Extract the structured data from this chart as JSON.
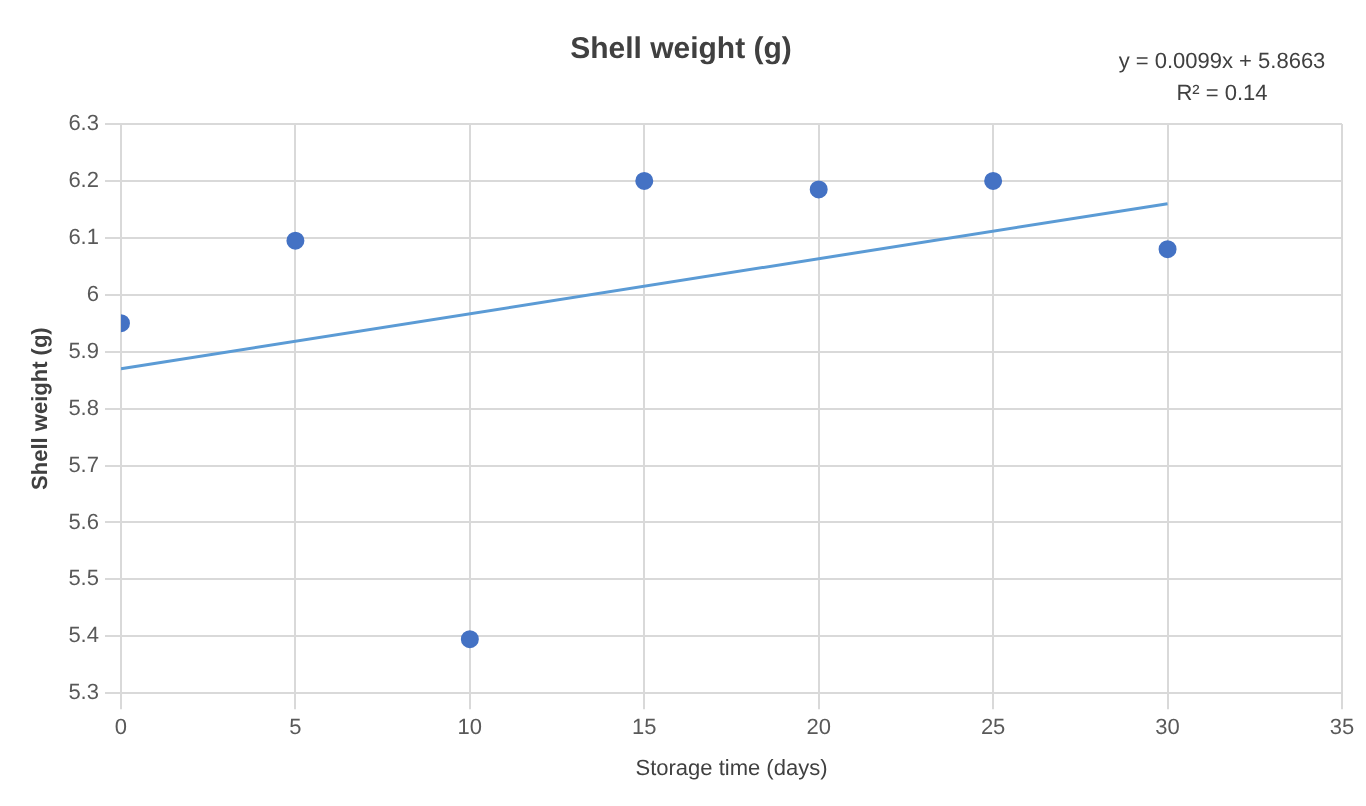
{
  "chart_data": {
    "type": "scatter",
    "title": "Shell weight (g)",
    "xlabel": "Storage time (days)",
    "ylabel": "Shell weight (g)",
    "series": [
      {
        "color": "#4472c4",
        "marker": "circle",
        "x": [
          0,
          5,
          10,
          15,
          20,
          25,
          30
        ],
        "values": [
          5.95,
          6.095,
          5.395,
          6.2,
          6.185,
          6.2,
          6.08
        ]
      },
      {
        "type": "line",
        "marker": "none",
        "color": "#5b9bd5",
        "x": [
          0,
          30
        ],
        "values": [
          5.87,
          6.16
        ]
      }
    ],
    "xlim": [
      0,
      35
    ],
    "xticks": [
      0,
      5,
      10,
      15,
      20,
      25,
      30,
      35
    ],
    "ylim": [
      5.3,
      6.3
    ],
    "yticks": [
      5.3,
      5.4,
      5.5,
      5.6,
      5.7,
      5.8,
      5.9,
      6,
      6.1,
      6.2,
      6.3
    ],
    "grid": true,
    "legend": false,
    "annotations": [
      "y = 0.0099x + 5.8663",
      "R² = 0.14"
    ]
  }
}
